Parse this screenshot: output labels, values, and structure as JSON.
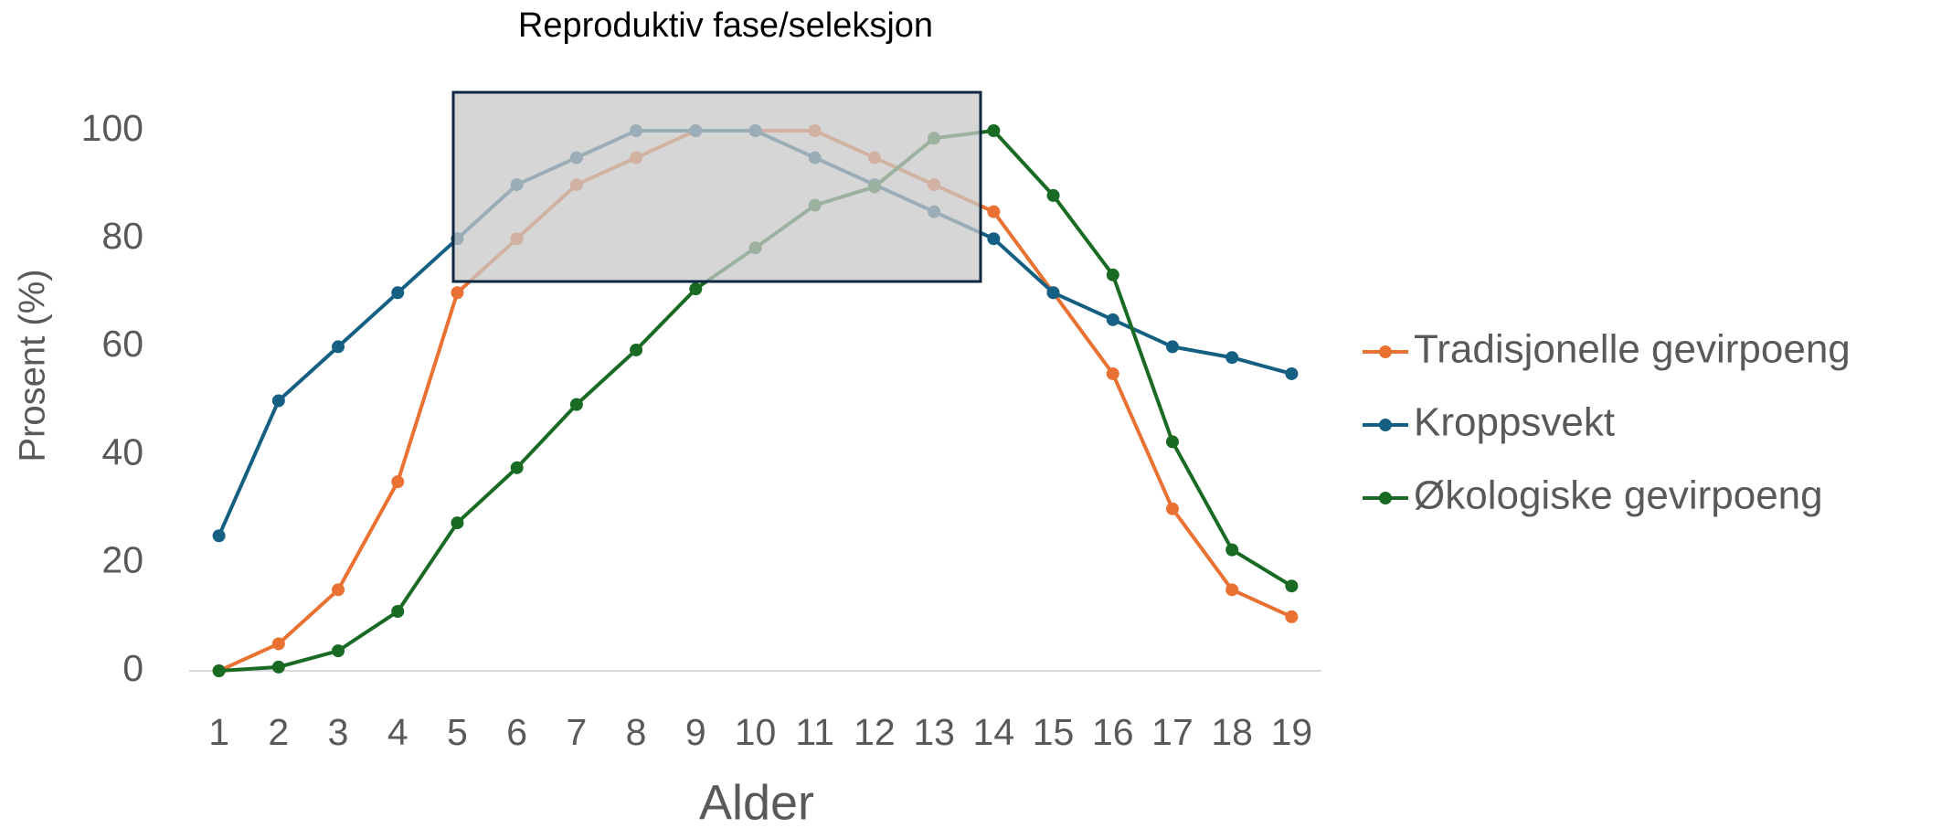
{
  "chart_data": {
    "type": "line",
    "annotation": "Reproduktiv fase/seleksjon",
    "x_label": "Alder",
    "y_label": "Prosent (%)",
    "categories": [
      "1",
      "2",
      "3",
      "4",
      "5",
      "6",
      "7",
      "8",
      "9",
      "10",
      "11",
      "12",
      "13",
      "14",
      "15",
      "16",
      "17",
      "18",
      "19"
    ],
    "series": [
      {
        "name": "Tradisjonelle gevirpoeng",
        "color": "#e97132",
        "values": [
          0,
          5,
          15,
          35,
          70,
          80,
          90,
          95,
          100,
          100,
          100,
          95,
          90,
          85,
          70,
          55,
          30,
          15,
          10
        ]
      },
      {
        "name": "Kroppsvekt",
        "color": "#156082",
        "values": [
          25,
          50,
          60,
          70,
          80,
          90,
          95,
          100,
          100,
          100,
          95,
          90,
          85,
          80,
          70,
          65,
          60,
          58,
          55
        ]
      },
      {
        "name": "Økologiske gevirpoeng",
        "color": "#196b24",
        "values": [
          0,
          0.7,
          3.7,
          11,
          27.4,
          37.6,
          49.3,
          59.4,
          70.7,
          78.3,
          86.2,
          89.6,
          98.6,
          100,
          88,
          73.3,
          42.4,
          22.4,
          15.7
        ]
      }
    ],
    "ylim": [
      0,
      100
    ],
    "yticks": [
      0,
      20,
      40,
      60,
      80,
      100
    ],
    "grid": false,
    "legend": "right"
  }
}
